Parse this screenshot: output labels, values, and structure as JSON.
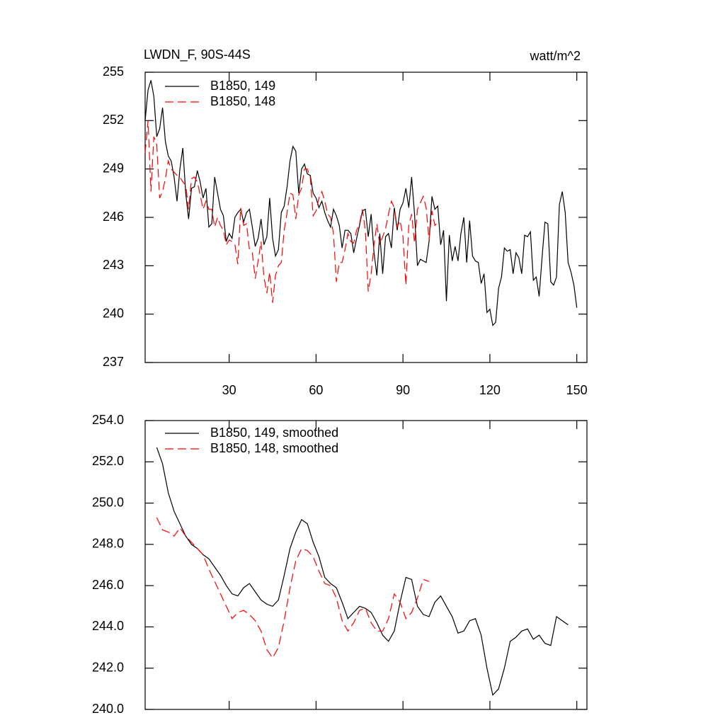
{
  "chart_data": [
    {
      "type": "line",
      "title": "LWDN_F, 90S-44S",
      "units": "watt/m^2",
      "x": [
        1,
        2,
        3,
        4,
        5,
        6,
        7,
        8,
        9,
        10,
        11,
        12,
        13,
        14,
        15,
        16,
        17,
        18,
        19,
        20,
        21,
        22,
        23,
        24,
        25,
        26,
        27,
        28,
        29,
        30,
        31,
        32,
        33,
        34,
        35,
        36,
        37,
        38,
        39,
        40,
        41,
        42,
        43,
        44,
        45,
        46,
        47,
        48,
        49,
        50,
        51,
        52,
        53,
        54,
        55,
        56,
        57,
        58,
        59,
        60,
        61,
        62,
        63,
        64,
        65,
        66,
        67,
        68,
        69,
        70,
        71,
        72,
        73,
        74,
        75,
        76,
        77,
        78,
        79,
        80,
        81,
        82,
        83,
        84,
        85,
        86,
        87,
        88,
        89,
        90,
        91,
        92,
        93,
        94,
        95,
        96,
        97,
        98,
        99,
        100,
        101,
        102,
        103,
        104,
        105,
        106,
        107,
        108,
        109,
        110,
        111,
        112,
        113,
        114,
        115,
        116,
        117,
        118,
        119,
        120,
        121,
        122,
        123,
        124,
        125,
        126,
        127,
        128,
        129,
        130,
        131,
        132,
        133,
        134,
        135,
        136,
        137,
        138,
        139,
        140,
        141,
        142,
        143,
        144,
        145,
        146,
        147,
        148,
        149,
        150
      ],
      "series": [
        {
          "name": "B1850, 149",
          "color": "#000000",
          "dashed": false,
          "values": [
            252,
            253.9,
            254.5,
            253.5,
            251,
            251.5,
            252.8,
            250.7,
            249.8,
            249.5,
            248.5,
            247,
            249,
            250.3,
            247.5,
            245.9,
            247.8,
            247.9,
            248.9,
            248.2,
            247.2,
            247.8,
            245.4,
            245.6,
            248.5,
            247.5,
            246.5,
            246.1,
            244.5,
            245,
            244.7,
            246,
            246.3,
            246.5,
            245.7,
            246.3,
            246.5,
            245.4,
            244.2,
            244.7,
            245.9,
            244.3,
            244.8,
            247.2,
            244.7,
            243.6,
            244,
            246.3,
            246.7,
            247.9,
            249.5,
            250.4,
            250.1,
            247.5,
            249,
            249.3,
            248.7,
            248.6,
            247.5,
            247.2,
            246.6,
            247,
            246.3,
            245.8,
            245.4,
            246.5,
            246.1,
            245.5,
            244.1,
            245.2,
            245.2,
            245,
            243.8,
            244.7,
            245.5,
            246.4,
            246.5,
            244.8,
            246.2,
            243.8,
            242.4,
            245,
            242.5,
            244.8,
            245,
            244.1,
            246.6,
            245.2,
            246.5,
            246.9,
            247.8,
            246.6,
            248.5,
            246.2,
            243,
            243.4,
            243.3,
            243.2,
            244.5,
            247.3,
            246.5,
            246.7,
            244.3,
            245.2,
            240.8,
            244.9,
            243.3,
            244.2,
            243.3,
            245,
            246,
            243.2,
            245.8,
            243.6,
            243.3,
            243.2,
            241.9,
            242.5,
            240.1,
            240.3,
            239.3,
            239.5,
            241.6,
            242.3,
            244.1,
            243.9,
            244,
            242.5,
            243.8,
            243.5,
            242.5,
            244.9,
            244.8,
            245.1,
            242.1,
            242.3,
            241.1,
            243.5,
            245.7,
            245.6,
            242,
            241.8,
            242.3,
            246.8,
            247.6,
            246.3,
            243.2,
            242.6,
            241.8,
            240.4
          ]
        },
        {
          "name": "B1850, 148",
          "color": "#ff0000",
          "dashed": true,
          "values": [
            250,
            252,
            247.6,
            251,
            250.5,
            247.2,
            247.6,
            248.4,
            249.5,
            249,
            248.8,
            248.6,
            248.5,
            248.2,
            248,
            246.5,
            248.4,
            248.5,
            248.2,
            247.4,
            246.5,
            247,
            246.5,
            246.5,
            245.4,
            246,
            245.5,
            245.2,
            244.3,
            244.6,
            244.5,
            244.3,
            243.1,
            246.6,
            245.5,
            245.6,
            244,
            243.8,
            242.2,
            243.3,
            244.5,
            242.3,
            241.3,
            242.6,
            240.7,
            242.4,
            243,
            243.2,
            245.2,
            246.3,
            247.5,
            247.4,
            245.9,
            247.4,
            247.8,
            249,
            249,
            248.5,
            246.1,
            246.4,
            247.2,
            247.6,
            247,
            246.2,
            246,
            245,
            242,
            243.2,
            243.2,
            244,
            245,
            244.5,
            244.4,
            245.2,
            245.6,
            246.5,
            245.2,
            241.4,
            242.5,
            244.3,
            245.6,
            244.3,
            244.8,
            245.3,
            246.2,
            247,
            246.6,
            245.4,
            245.8,
            244.8,
            241.8,
            245.5,
            246.2,
            244.4,
            246.5,
            246.9,
            247.3,
            246.6,
            244.6,
            246.4,
            245.5,
            245.7,
            null,
            null,
            null,
            null,
            null,
            null,
            null,
            null,
            null,
            null,
            null,
            null,
            null,
            null,
            null,
            null,
            null,
            null,
            null,
            null,
            null,
            null,
            null,
            null,
            null,
            null,
            null,
            null,
            null,
            null,
            null,
            null,
            null,
            null,
            null,
            null,
            null,
            null,
            null,
            null,
            null,
            null,
            null,
            null,
            null,
            null,
            null,
            null
          ]
        }
      ],
      "xlim": [
        1,
        153.5
      ],
      "xticks": [
        30,
        60,
        90,
        120,
        150
      ],
      "xtick_labels": true,
      "ylim": [
        237,
        255
      ],
      "yticks": [
        237,
        240,
        243,
        246,
        249,
        252,
        255
      ]
    },
    {
      "type": "line",
      "x": [
        5,
        7,
        9,
        11,
        13,
        15,
        17,
        19,
        21,
        23,
        25,
        27,
        29,
        31,
        33,
        35,
        37,
        39,
        41,
        43,
        45,
        47,
        49,
        51,
        53,
        55,
        57,
        59,
        61,
        63,
        65,
        67,
        69,
        71,
        73,
        75,
        77,
        79,
        81,
        83,
        85,
        87,
        89,
        91,
        93,
        95,
        97,
        99,
        101,
        103,
        105,
        107,
        109,
        111,
        113,
        115,
        117,
        119,
        121,
        123,
        125,
        127,
        129,
        131,
        133,
        135,
        137,
        139,
        141,
        143,
        145,
        147
      ],
      "series": [
        {
          "name": "B1850, 149, smoothed",
          "color": "#000000",
          "dashed": false,
          "values": [
            252.7,
            251.9,
            250.5,
            249.6,
            249,
            248.4,
            248,
            247.8,
            247.5,
            247.3,
            246.9,
            246.5,
            246,
            245.6,
            245.5,
            245.9,
            246.1,
            245.7,
            245.3,
            245.1,
            245,
            245.3,
            246.5,
            247.8,
            248.6,
            249.2,
            249,
            248.1,
            247.4,
            246.4,
            246.1,
            245.9,
            245.2,
            244.4,
            244.7,
            245,
            244.9,
            244.7,
            244.2,
            243.6,
            243.3,
            243.8,
            245.2,
            246.4,
            246.3,
            245,
            244.6,
            244.5,
            245.2,
            245.5,
            245,
            244.5,
            243.7,
            243.8,
            244.3,
            244.4,
            243.6,
            242,
            240.7,
            241,
            242,
            243.3,
            243.5,
            243.8,
            243.9,
            243.4,
            243.6,
            243.2,
            243.1,
            244.5,
            244.3,
            244.1
          ]
        },
        {
          "name": "B1850, 148, smoothed",
          "color": "#ff0000",
          "dashed": true,
          "values": [
            249.3,
            248.7,
            248.6,
            248.4,
            248.8,
            248.4,
            248.1,
            247.8,
            247.5,
            246.8,
            246.2,
            245.6,
            245,
            244.4,
            244.7,
            244.8,
            244.6,
            244.3,
            243.8,
            242.9,
            242.5,
            243,
            244.3,
            245.9,
            247.2,
            247.8,
            247.7,
            247.4,
            246.7,
            246.1,
            246,
            245.4,
            244.3,
            243.8,
            244.2,
            244.8,
            244.9,
            244.2,
            243.8,
            243.8,
            244.4,
            245.6,
            245.2,
            244.4,
            244.7,
            245.4,
            246.3,
            246.2,
            null,
            null,
            null,
            null,
            null,
            null,
            null,
            null,
            null,
            null,
            null,
            null,
            null,
            null,
            null,
            null,
            null,
            null,
            null,
            null,
            null,
            null,
            null,
            null
          ]
        }
      ],
      "xlim": [
        1,
        153.5
      ],
      "xticks": [
        30,
        60,
        90,
        120,
        150
      ],
      "xtick_labels": false,
      "ylim": [
        240,
        254
      ],
      "yticks": [
        {
          "value": 240,
          "label": "240.0"
        },
        {
          "value": 242,
          "label": "242.0"
        },
        {
          "value": 244,
          "label": "244.0"
        },
        {
          "value": 246,
          "label": "246.0"
        },
        {
          "value": 248,
          "label": "248.0"
        },
        {
          "value": 250,
          "label": "250.0"
        },
        {
          "value": 252,
          "label": "252.0"
        },
        {
          "value": 254,
          "label": "254.0"
        }
      ]
    }
  ]
}
